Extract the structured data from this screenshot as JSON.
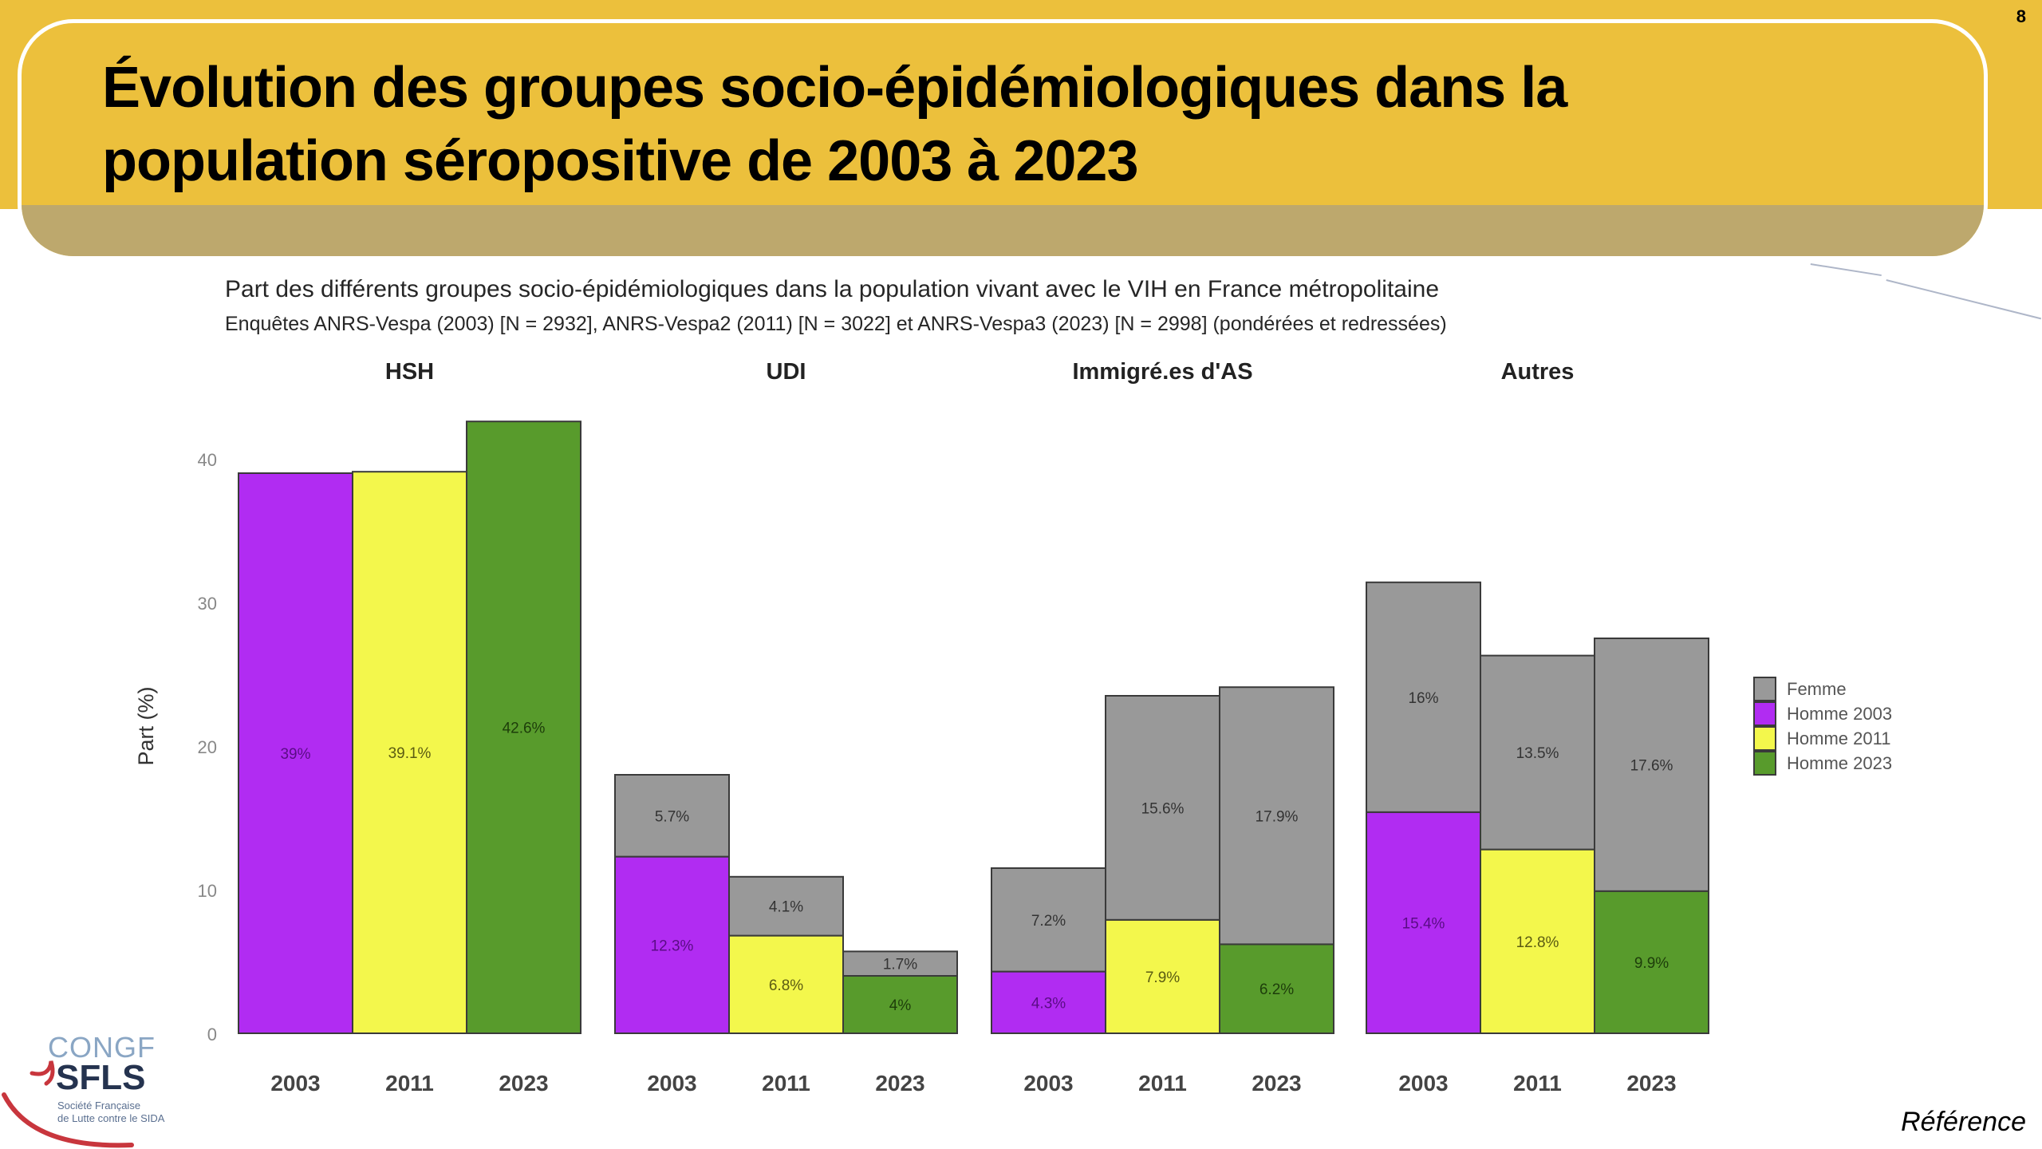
{
  "slide": {
    "title_line1": "Évolution des groupes socio-épidémiologiques dans la",
    "title_line2": "population séropositive de 2003 à 2023",
    "page_number": "8",
    "reference": "Référence",
    "colors": {
      "banner": "#ECC03C",
      "banner_shade": "#BDA86D"
    }
  },
  "logo": {
    "line1": "CONGF",
    "line2": "SFLS",
    "line3": "Société Française",
    "line4": "de Lutte contre le SIDA"
  },
  "chart_data": {
    "type": "bar",
    "stacked": true,
    "title": "Part des différents groupes socio-épidémiologiques dans la population vivant avec le VIH en France métropolitaine",
    "subtitle": "Enquêtes ANRS-Vespa (2003) [N = 2932], ANRS-Vespa2 (2011) [N = 3022] et ANRS-Vespa3 (2023) [N = 2998] (pondérées et redressées)",
    "ylabel": "Part (%)",
    "xlabel": "",
    "ylim": [
      0,
      43
    ],
    "yticks": [
      0,
      10,
      20,
      30,
      40
    ],
    "grid": false,
    "legend_position": "right",
    "legend": [
      {
        "name": "Femme",
        "color": "#999999"
      },
      {
        "name": "Homme 2003",
        "color": "#B12CF2"
      },
      {
        "name": "Homme 2011",
        "color": "#F3F74C"
      },
      {
        "name": "Homme 2023",
        "color": "#589B2C"
      }
    ],
    "panels": [
      {
        "name": "HSH",
        "categories": [
          "2003",
          "2011",
          "2023"
        ],
        "bars": [
          {
            "year": "2003",
            "homme": 39,
            "homme_label": "39%",
            "homme_series": "Homme 2003",
            "femme": null,
            "femme_label": null
          },
          {
            "year": "2011",
            "homme": 39.1,
            "homme_label": "39.1%",
            "homme_series": "Homme 2011",
            "femme": null,
            "femme_label": null
          },
          {
            "year": "2023",
            "homme": 42.6,
            "homme_label": "42.6%",
            "homme_series": "Homme 2023",
            "femme": null,
            "femme_label": null
          }
        ]
      },
      {
        "name": "UDI",
        "categories": [
          "2003",
          "2011",
          "2023"
        ],
        "bars": [
          {
            "year": "2003",
            "homme": 12.3,
            "homme_label": "12.3%",
            "homme_series": "Homme 2003",
            "femme": 5.7,
            "femme_label": "5.7%"
          },
          {
            "year": "2011",
            "homme": 6.8,
            "homme_label": "6.8%",
            "homme_series": "Homme 2011",
            "femme": 4.1,
            "femme_label": "4.1%"
          },
          {
            "year": "2023",
            "homme": 4,
            "homme_label": "4%",
            "homme_series": "Homme 2023",
            "femme": 1.7,
            "femme_label": "1.7%"
          }
        ]
      },
      {
        "name": "Immigré.es d'AS",
        "categories": [
          "2003",
          "2011",
          "2023"
        ],
        "bars": [
          {
            "year": "2003",
            "homme": 4.3,
            "homme_label": "4.3%",
            "homme_series": "Homme 2003",
            "femme": 7.2,
            "femme_label": "7.2%"
          },
          {
            "year": "2011",
            "homme": 7.9,
            "homme_label": "7.9%",
            "homme_series": "Homme 2011",
            "femme": 15.6,
            "femme_label": "15.6%"
          },
          {
            "year": "2023",
            "homme": 6.2,
            "homme_label": "6.2%",
            "homme_series": "Homme 2023",
            "femme": 17.9,
            "femme_label": "17.9%"
          }
        ]
      },
      {
        "name": "Autres",
        "categories": [
          "2003",
          "2011",
          "2023"
        ],
        "bars": [
          {
            "year": "2003",
            "homme": 15.4,
            "homme_label": "15.4%",
            "homme_series": "Homme 2003",
            "femme": 16,
            "femme_label": "16%"
          },
          {
            "year": "2011",
            "homme": 12.8,
            "homme_label": "12.8%",
            "homme_series": "Homme 2011",
            "femme": 13.5,
            "femme_label": "13.5%"
          },
          {
            "year": "2023",
            "homme": 9.9,
            "homme_label": "9.9%",
            "homme_series": "Homme 2023",
            "femme": 17.6,
            "femme_label": "17.6%"
          }
        ]
      }
    ]
  }
}
